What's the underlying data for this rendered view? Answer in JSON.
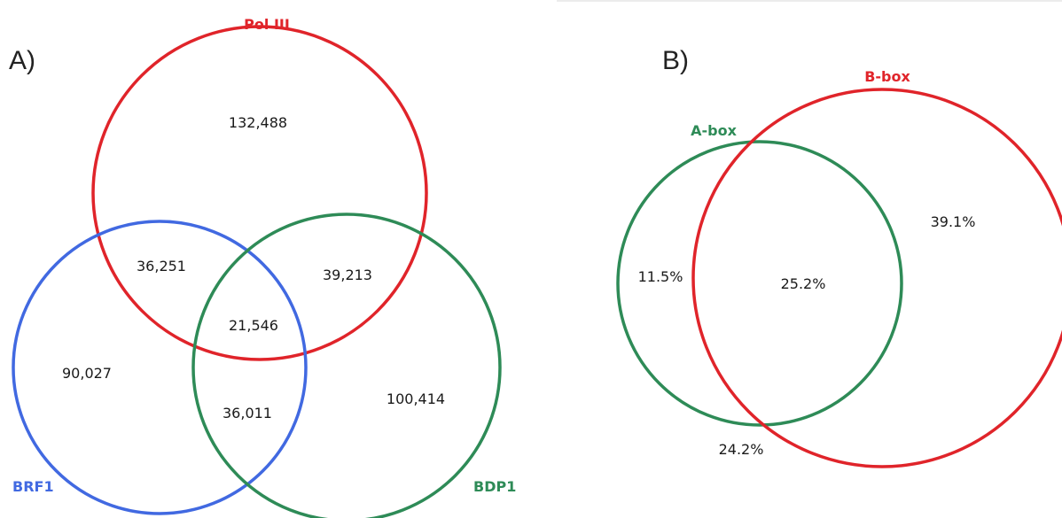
{
  "panels": {
    "a": {
      "label": "A)",
      "sets": {
        "pol3": {
          "name": "Pol III",
          "color": "#e0242a"
        },
        "brf1": {
          "name": "BRF1",
          "color": "#4169e1"
        },
        "bdp1": {
          "name": "BDP1",
          "color": "#2e8b57"
        }
      },
      "regions": {
        "pol3_only": "132,488",
        "pol3_brf1": "36,251",
        "pol3_bdp1": "39,213",
        "all_three": "21,546",
        "brf1_only": "90,027",
        "brf1_bdp1": "36,011",
        "bdp1_only": "100,414"
      }
    },
    "b": {
      "label": "B)",
      "sets": {
        "abox": {
          "name": "A-box",
          "color": "#2e8b57"
        },
        "bbox": {
          "name": "B-box",
          "color": "#e0242a"
        }
      },
      "regions": {
        "abox_only": "11.5%",
        "both": "25.2%",
        "bbox_only": "39.1%",
        "neither": "24.2%"
      }
    }
  }
}
